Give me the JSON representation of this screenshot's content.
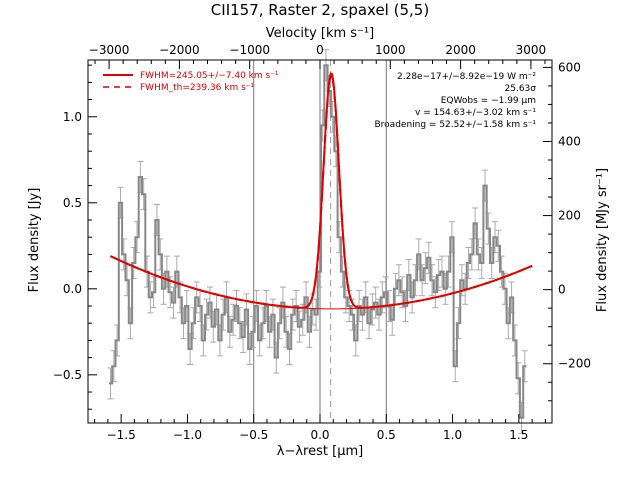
{
  "chart_data": {
    "type": "line",
    "title": "CII157, Raster 2, spaxel (5,5)",
    "xlabel": "λ−λrest [μm]",
    "ylabel": "Flux density [Jy]",
    "y2label": "Flux density [MJy sr⁻¹]",
    "x2label": "Velocity [km s⁻¹]",
    "xlim": [
      -1.75,
      1.75
    ],
    "ylim": [
      -0.78,
      1.33
    ],
    "y2lim": [
      -360,
      620
    ],
    "vlim": [
      -3300,
      3300
    ],
    "grid": false,
    "legend_position": "top-left",
    "x_ticks": [
      -1.5,
      -1.0,
      -0.5,
      0.0,
      0.5,
      1.0,
      1.5
    ],
    "x_tick_labels": [
      "−1.5",
      "−1.0",
      "−0.5",
      "0.0",
      "0.5",
      "1.0",
      "1.5"
    ],
    "y_ticks": [
      -0.5,
      0.0,
      0.5,
      1.0
    ],
    "y_tick_labels": [
      "−0.5",
      "0.0",
      "0.5",
      "1.0"
    ],
    "y2_ticks": [
      -200,
      0,
      200,
      400,
      600
    ],
    "y2_tick_labels": [
      "−200",
      "0",
      "200",
      "400",
      "600"
    ],
    "v_ticks": [
      -3000,
      -2000,
      -1000,
      0,
      1000,
      2000,
      3000
    ],
    "v_tick_labels": [
      "−3000",
      "−2000",
      "−1000",
      "0",
      "1000",
      "2000",
      "3000"
    ],
    "vertical_lines_x": [
      -0.5,
      0.0,
      0.5
    ],
    "line_center_x": 0.08,
    "legend": [
      {
        "name": "FWHM=245.05+/−7.40 km s⁻¹",
        "style": "solid",
        "color": "#e00000"
      },
      {
        "name": "FWHM_th=239.36 km s⁻¹",
        "style": "dashed",
        "color": "#e00000"
      }
    ],
    "annotations": [
      "2.28e−17+/−8.92e−19 W m⁻²",
      "25.63σ",
      "EQWobs = −1.99 μm",
      "v = 154.63+/−3.02 km s⁻¹",
      "Broadening = 52.52+/−1.58 km s⁻¹"
    ],
    "fit_model": {
      "baseline_quadratic": [
        -0.116,
        -0.02,
        0.11
      ],
      "gaussian_amplitude": 1.37,
      "gaussian_center": 0.085,
      "gaussian_sigma": 0.058
    },
    "series": [
      {
        "name": "spectrum",
        "color": "#888888",
        "x": [
          -1.58,
          -1.555,
          -1.53,
          -1.505,
          -1.48,
          -1.455,
          -1.43,
          -1.405,
          -1.38,
          -1.355,
          -1.33,
          -1.305,
          -1.28,
          -1.255,
          -1.23,
          -1.205,
          -1.18,
          -1.155,
          -1.13,
          -1.105,
          -1.08,
          -1.055,
          -1.03,
          -1.005,
          -0.98,
          -0.955,
          -0.93,
          -0.905,
          -0.88,
          -0.855,
          -0.83,
          -0.805,
          -0.78,
          -0.755,
          -0.73,
          -0.705,
          -0.68,
          -0.655,
          -0.63,
          -0.605,
          -0.58,
          -0.555,
          -0.53,
          -0.505,
          -0.48,
          -0.455,
          -0.43,
          -0.405,
          -0.38,
          -0.355,
          -0.33,
          -0.305,
          -0.28,
          -0.255,
          -0.23,
          -0.205,
          -0.18,
          -0.155,
          -0.13,
          -0.105,
          -0.08,
          -0.055,
          -0.03,
          -0.005,
          0.02,
          0.045,
          0.07,
          0.095,
          0.12,
          0.145,
          0.17,
          0.195,
          0.22,
          0.245,
          0.27,
          0.295,
          0.32,
          0.345,
          0.37,
          0.395,
          0.42,
          0.445,
          0.47,
          0.495,
          0.52,
          0.545,
          0.57,
          0.595,
          0.62,
          0.645,
          0.67,
          0.695,
          0.72,
          0.745,
          0.77,
          0.795,
          0.82,
          0.845,
          0.87,
          0.895,
          0.92,
          0.945,
          0.97,
          0.995,
          1.02,
          1.045,
          1.07,
          1.095,
          1.12,
          1.145,
          1.17,
          1.195,
          1.22,
          1.245,
          1.27,
          1.295,
          1.32,
          1.345,
          1.37,
          1.395,
          1.42,
          1.445,
          1.47,
          1.495,
          1.52,
          1.545
        ],
        "y": [
          -0.55,
          -0.45,
          -0.3,
          0.5,
          0.2,
          0.05,
          -0.2,
          0.15,
          0.3,
          0.65,
          0.55,
          0.1,
          -0.05,
          -0.02,
          0.4,
          0.2,
          0.0,
          0.1,
          -0.02,
          -0.08,
          0.1,
          -0.05,
          -0.2,
          -0.1,
          -0.35,
          -0.2,
          -0.05,
          -0.1,
          -0.3,
          -0.15,
          -0.08,
          -0.22,
          -0.12,
          -0.3,
          -0.15,
          -0.05,
          -0.25,
          -0.18,
          -0.1,
          -0.2,
          -0.28,
          -0.12,
          -0.35,
          -0.25,
          -0.1,
          -0.3,
          -0.2,
          -0.1,
          -0.25,
          -0.15,
          -0.4,
          -0.2,
          -0.08,
          -0.25,
          -0.35,
          -0.15,
          -0.1,
          -0.22,
          -0.18,
          -0.05,
          -0.25,
          -0.12,
          -0.15,
          0.1,
          0.95,
          1.3,
          1.15,
          1.0,
          0.8,
          0.3,
          0.1,
          -0.05,
          -0.1,
          -0.15,
          -0.3,
          -0.1,
          -0.15,
          -0.05,
          -0.2,
          -0.12,
          -0.08,
          -0.15,
          -0.05,
          -0.02,
          -0.1,
          -0.18,
          0.0,
          0.05,
          -0.02,
          -0.1,
          0.08,
          -0.05,
          0.05,
          0.2,
          0.05,
          0.12,
          0.18,
          0.05,
          -0.02,
          0.08,
          0.1,
          0.0,
          0.1,
          0.3,
          -0.45,
          -0.2,
          0.05,
          0.0,
          0.15,
          0.2,
          0.38,
          0.2,
          0.15,
          0.6,
          0.35,
          0.15,
          0.3,
          0.25,
          0.1,
          0.0,
          -0.2,
          -0.05,
          -0.3,
          -0.52,
          -0.75,
          -0.45
        ],
        "err": 0.09
      }
    ]
  }
}
